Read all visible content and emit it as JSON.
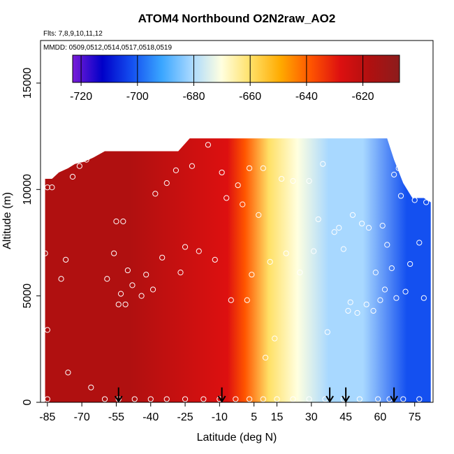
{
  "chart_data": {
    "type": "heatmap",
    "title": "ATOM4 Northbound O2N2raw_AO2",
    "subtitle_flights": "Flts: 7,8,9,10,11,12",
    "subtitle_dates": "MMDD: 0509,0512,0514,0517,0518,0519",
    "xlabel": "Latitude (deg N)",
    "ylabel": "Altitude (m)",
    "xlim": [
      -88,
      83
    ],
    "ylim": [
      0,
      17000
    ],
    "x_ticks": [
      -85,
      -70,
      -55,
      -40,
      -25,
      -10,
      5,
      15,
      30,
      45,
      60,
      75
    ],
    "x_tick_labels": [
      "-85",
      "-70",
      "-55",
      "-40",
      "-25",
      "-10",
      "5",
      "15",
      "30",
      "45",
      "60",
      "75"
    ],
    "y_ticks": [
      0,
      5000,
      10000,
      15000
    ],
    "y_tick_labels": [
      "0",
      "5000",
      "10000",
      "15000"
    ],
    "colorbar": {
      "min": -723,
      "max": -607,
      "ticks": [
        -720,
        -700,
        -680,
        -660,
        -640,
        -620
      ],
      "tick_labels": [
        "-720",
        "-700",
        "-680",
        "-660",
        "-640",
        "-620"
      ],
      "colors": [
        "#7a1cd8",
        "#0000c8",
        "#1450f0",
        "#3aa6ff",
        "#a8d8ff",
        "#ffffe0",
        "#ffe066",
        "#ffaa00",
        "#ff5500",
        "#dd1010",
        "#b01010",
        "#8c1c1c"
      ]
    },
    "altitude_envelope": [
      {
        "lat": -86,
        "top": 10500
      },
      {
        "lat": -83,
        "top": 10500
      },
      {
        "lat": -80,
        "top": 10800
      },
      {
        "lat": -76,
        "top": 11000
      },
      {
        "lat": -73,
        "top": 11200
      },
      {
        "lat": -69,
        "top": 11300
      },
      {
        "lat": -65,
        "top": 11500
      },
      {
        "lat": -60,
        "top": 11800
      },
      {
        "lat": -28,
        "top": 11800
      },
      {
        "lat": -23,
        "top": 12400
      },
      {
        "lat": 63,
        "top": 12400
      },
      {
        "lat": 66,
        "top": 11400
      },
      {
        "lat": 70,
        "top": 10300
      },
      {
        "lat": 74,
        "top": 9600
      },
      {
        "lat": 79,
        "top": 9600
      },
      {
        "lat": 82,
        "top": 9400
      }
    ],
    "zones": [
      {
        "lat_min": -88,
        "lat_max": -10,
        "value": -617
      },
      {
        "lat_min": -10,
        "lat_max": -3,
        "value": -625
      },
      {
        "lat_min": -3,
        "lat_max": 5,
        "value": -640
      },
      {
        "lat_min": 5,
        "lat_max": 18,
        "value": -655
      },
      {
        "lat_min": 18,
        "lat_max": 30,
        "value": -668
      },
      {
        "lat_min": 30,
        "lat_max": 45,
        "value": -678
      },
      {
        "lat_min": 45,
        "lat_max": 60,
        "value": -686
      },
      {
        "lat_min": 60,
        "lat_max": 83,
        "value": -703
      }
    ],
    "sample_points": [
      {
        "lat": -86,
        "alt": 7000
      },
      {
        "lat": -85,
        "alt": 3400
      },
      {
        "lat": -85,
        "alt": 10100
      },
      {
        "lat": -83,
        "alt": 10100
      },
      {
        "lat": -79,
        "alt": 5800
      },
      {
        "lat": -77,
        "alt": 6700
      },
      {
        "lat": -76,
        "alt": 1400
      },
      {
        "lat": -74,
        "alt": 10600
      },
      {
        "lat": -71,
        "alt": 11100
      },
      {
        "lat": -68,
        "alt": 11400
      },
      {
        "lat": -66,
        "alt": 700
      },
      {
        "lat": -59,
        "alt": 5800
      },
      {
        "lat": -56,
        "alt": 7000
      },
      {
        "lat": -55,
        "alt": 8500
      },
      {
        "lat": -54,
        "alt": 4600
      },
      {
        "lat": -53,
        "alt": 5100
      },
      {
        "lat": -52,
        "alt": 8500
      },
      {
        "lat": -51,
        "alt": 4600
      },
      {
        "lat": -50,
        "alt": 6200
      },
      {
        "lat": -48,
        "alt": 5500
      },
      {
        "lat": -44,
        "alt": 5000
      },
      {
        "lat": -42,
        "alt": 6000
      },
      {
        "lat": -39,
        "alt": 5300
      },
      {
        "lat": -38,
        "alt": 9800
      },
      {
        "lat": -35,
        "alt": 6800
      },
      {
        "lat": -33,
        "alt": 10300
      },
      {
        "lat": -29,
        "alt": 10900
      },
      {
        "lat": -27,
        "alt": 6100
      },
      {
        "lat": -25,
        "alt": 7300
      },
      {
        "lat": -22,
        "alt": 11100
      },
      {
        "lat": -19,
        "alt": 7100
      },
      {
        "lat": -15,
        "alt": 12100
      },
      {
        "lat": -12,
        "alt": 6700
      },
      {
        "lat": -9,
        "alt": 10800
      },
      {
        "lat": -7,
        "alt": 9600
      },
      {
        "lat": -5,
        "alt": 4800
      },
      {
        "lat": -2,
        "alt": 10200
      },
      {
        "lat": 0,
        "alt": 9300
      },
      {
        "lat": 2,
        "alt": 4800
      },
      {
        "lat": 3,
        "alt": 11000
      },
      {
        "lat": 4,
        "alt": 6000
      },
      {
        "lat": 7,
        "alt": 8800
      },
      {
        "lat": 9,
        "alt": 11000
      },
      {
        "lat": 10,
        "alt": 2100
      },
      {
        "lat": 12,
        "alt": 6600
      },
      {
        "lat": 14,
        "alt": 3000
      },
      {
        "lat": 17,
        "alt": 10500
      },
      {
        "lat": 19,
        "alt": 7000
      },
      {
        "lat": 22,
        "alt": 10400
      },
      {
        "lat": 25,
        "alt": 6100
      },
      {
        "lat": 29,
        "alt": 10400
      },
      {
        "lat": 31,
        "alt": 7100
      },
      {
        "lat": 33,
        "alt": 8600
      },
      {
        "lat": 35,
        "alt": 11200
      },
      {
        "lat": 37,
        "alt": 3300
      },
      {
        "lat": 40,
        "alt": 8000
      },
      {
        "lat": 42,
        "alt": 8200
      },
      {
        "lat": 44,
        "alt": 7200
      },
      {
        "lat": 46,
        "alt": 4300
      },
      {
        "lat": 47,
        "alt": 4700
      },
      {
        "lat": 48,
        "alt": 8800
      },
      {
        "lat": 50,
        "alt": 4200
      },
      {
        "lat": 52,
        "alt": 8400
      },
      {
        "lat": 54,
        "alt": 4600
      },
      {
        "lat": 55,
        "alt": 8200
      },
      {
        "lat": 57,
        "alt": 4300
      },
      {
        "lat": 58,
        "alt": 6100
      },
      {
        "lat": 60,
        "alt": 4800
      },
      {
        "lat": 61,
        "alt": 8300
      },
      {
        "lat": 62,
        "alt": 5300
      },
      {
        "lat": 63,
        "alt": 7400
      },
      {
        "lat": 65,
        "alt": 6300
      },
      {
        "lat": 66,
        "alt": 10700
      },
      {
        "lat": 67,
        "alt": 4900
      },
      {
        "lat": 68,
        "alt": 11000
      },
      {
        "lat": 69,
        "alt": 9700
      },
      {
        "lat": 71,
        "alt": 5200
      },
      {
        "lat": 73,
        "alt": 6500
      },
      {
        "lat": 75,
        "alt": 9500
      },
      {
        "lat": 77,
        "alt": 7500
      },
      {
        "lat": 79,
        "alt": 4900
      },
      {
        "lat": 80,
        "alt": 9400
      }
    ],
    "surface_points": [
      -85,
      -60,
      -54,
      -47,
      -40,
      -33,
      -25,
      -17,
      -10,
      -3,
      3,
      9,
      15,
      22,
      29,
      36,
      44,
      51,
      59,
      64,
      70,
      77
    ],
    "flight_profile_markers_lat": [
      -54,
      -9,
      38,
      45,
      66
    ]
  }
}
